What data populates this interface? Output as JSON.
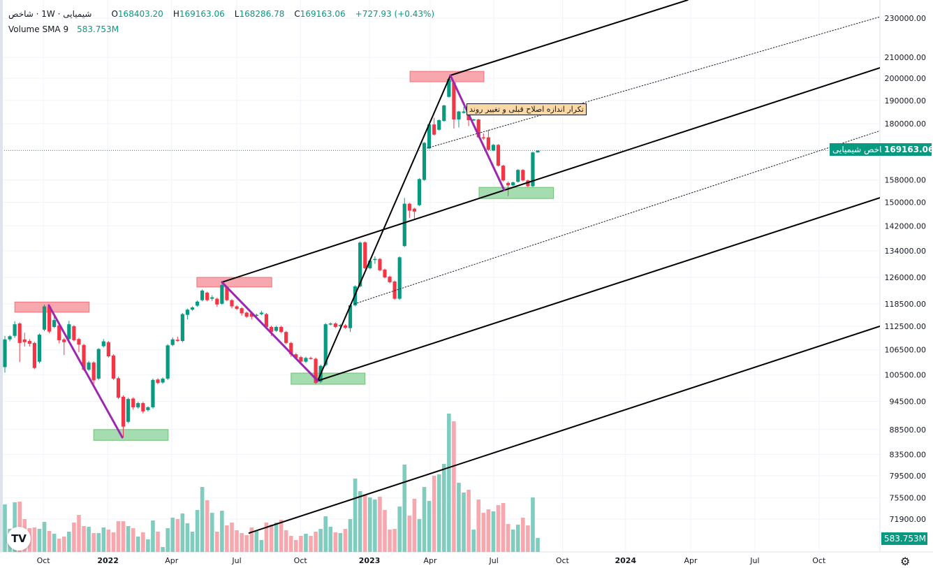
{
  "header": {
    "symbol": "شیمیایی · 1W · شاخص",
    "ohlc": {
      "o_label": "O",
      "o": "168403.20",
      "h_label": "H",
      "h": "169163.06",
      "l_label": "L",
      "l": "168286.78",
      "c_label": "C",
      "c": "169163.06",
      "change": "+727.93 (+0.43%)"
    },
    "volume_label": "Volume SMA 9",
    "volume_value": "583.753M"
  },
  "price_tag": {
    "name": "شاخص شیمیایی",
    "value": "169163.06"
  },
  "volume_tag": "583.753M",
  "callout_text": "تکرار اندازه اصلاح قبلی و تغییر روند",
  "logo_text": "TV",
  "icons": {
    "settings": "gear-icon",
    "logo": "tradingview-logo-icon"
  },
  "colors": {
    "up": "#089981",
    "down": "#F23645",
    "up_volume": "#80cdbf",
    "down_volume": "#f7a8ae",
    "pattern": "#9c27b0",
    "supply": "#f7a8ae",
    "demand": "#a5dcb0"
  },
  "chart_data": {
    "type": "candlestick",
    "interval": "1W",
    "y_scale": "log",
    "ylim": [
      69000,
      240000
    ],
    "y_ticks": [
      230000,
      210000,
      200000,
      190000,
      180000,
      158000,
      150000,
      142000,
      134000,
      126000,
      118500,
      112500,
      106500,
      100500,
      94500,
      88500,
      83500,
      79500,
      75500,
      71900
    ],
    "y_tick_labels": [
      "230000.00",
      "210000.00",
      "200000.00",
      "190000.00",
      "180000.00",
      "158000.00",
      "150000.00",
      "142000.00",
      "134000.00",
      "126000.00",
      "118500.00",
      "112500.00",
      "106500.00",
      "100500.00",
      "94500.00",
      "88500.00",
      "83500.00",
      "79500.00",
      "75500.00",
      "71900.00"
    ],
    "x_ticks": [
      {
        "label": "Oct",
        "week": 7.8
      },
      {
        "label": "2022",
        "week": 20.9
      },
      {
        "label": "Apr",
        "week": 33.8
      },
      {
        "label": "Jul",
        "week": 47.0
      },
      {
        "label": "Oct",
        "week": 59.9
      },
      {
        "label": "2023",
        "week": 73.9
      },
      {
        "label": "Apr",
        "week": 86.2
      },
      {
        "label": "Jul",
        "week": 99.1
      },
      {
        "label": "Oct",
        "week": 113.0
      },
      {
        "label": "2024",
        "week": 125.8
      },
      {
        "label": "Apr",
        "week": 139.0
      },
      {
        "label": "Jul",
        "week": 152.0
      },
      {
        "label": "Oct",
        "week": 165.0
      }
    ],
    "last_price": 169163.06,
    "candles_ohlc_volumeM": [
      [
        102300,
        110000,
        101000,
        109100,
        823
      ],
      [
        109100,
        110200,
        108600,
        109900,
        400
      ],
      [
        110000,
        113800,
        109500,
        113000,
        860
      ],
      [
        113200,
        113500,
        103500,
        108200,
        871
      ],
      [
        109100,
        110800,
        107300,
        108400,
        569
      ],
      [
        108700,
        109200,
        107300,
        108000,
        411
      ],
      [
        108200,
        108500,
        101800,
        102100,
        424
      ],
      [
        103600,
        110600,
        103200,
        110300,
        399
      ],
      [
        111600,
        118300,
        111200,
        117800,
        520
      ],
      [
        117800,
        118100,
        110700,
        111100,
        363
      ],
      [
        112300,
        115100,
        112000,
        114100,
        315
      ],
      [
        112700,
        113000,
        108100,
        108900,
        230
      ],
      [
        109100,
        109500,
        105200,
        108400,
        266
      ],
      [
        109200,
        113900,
        108800,
        113000,
        351
      ],
      [
        112500,
        112800,
        108600,
        108900,
        508
      ],
      [
        109200,
        109500,
        105900,
        107800,
        641
      ],
      [
        107700,
        108000,
        101400,
        101700,
        448
      ],
      [
        101700,
        103800,
        101400,
        103400,
        436
      ],
      [
        103400,
        103700,
        98400,
        99200,
        327
      ],
      [
        99600,
        106900,
        99300,
        106700,
        327
      ],
      [
        107400,
        109200,
        107100,
        108600,
        424
      ],
      [
        108400,
        108700,
        104600,
        104900,
        387
      ],
      [
        105100,
        105400,
        99300,
        99600,
        339
      ],
      [
        99700,
        100000,
        95000,
        95300,
        532
      ],
      [
        95500,
        95800,
        86900,
        89100,
        532
      ],
      [
        90100,
        95300,
        89800,
        95000,
        448
      ],
      [
        95100,
        95400,
        92700,
        93200,
        411
      ],
      [
        93200,
        94400,
        92900,
        94100,
        266
      ],
      [
        94100,
        94400,
        91900,
        92300,
        339
      ],
      [
        92600,
        93400,
        92300,
        93200,
        218
      ],
      [
        93200,
        99600,
        92900,
        99300,
        545
      ],
      [
        99400,
        99700,
        98300,
        98600,
        351
      ],
      [
        98700,
        99900,
        98400,
        99600,
        85
      ],
      [
        99600,
        107900,
        99300,
        107600,
        411
      ],
      [
        107700,
        109600,
        107400,
        109100,
        593
      ],
      [
        109000,
        109800,
        108500,
        108700,
        569
      ],
      [
        108700,
        116000,
        108400,
        115700,
        666
      ],
      [
        115500,
        117200,
        114300,
        116900,
        496
      ],
      [
        116900,
        117800,
        116600,
        117500,
        351
      ],
      [
        118000,
        119400,
        117700,
        119100,
        726
      ],
      [
        119500,
        122500,
        119200,
        122200,
        1125
      ],
      [
        121600,
        121900,
        119200,
        119500,
        895
      ],
      [
        119900,
        120900,
        119300,
        120300,
        678
      ],
      [
        119900,
        120200,
        117700,
        118300,
        351
      ],
      [
        118500,
        124100,
        118200,
        123800,
        714
      ],
      [
        123200,
        123500,
        119200,
        119500,
        460
      ],
      [
        119500,
        119800,
        117300,
        117800,
        508
      ],
      [
        117800,
        118100,
        116800,
        117100,
        375
      ],
      [
        117300,
        117600,
        115300,
        115900,
        327
      ],
      [
        116100,
        116400,
        114700,
        115000,
        290
      ],
      [
        115900,
        116200,
        114300,
        115000,
        424
      ],
      [
        115200,
        115800,
        114900,
        115500,
        363
      ],
      [
        115700,
        116600,
        115400,
        116100,
        206
      ],
      [
        115700,
        116000,
        112000,
        112300,
        508
      ],
      [
        112300,
        112600,
        110000,
        111000,
        472
      ],
      [
        111300,
        112600,
        111000,
        112300,
        508
      ],
      [
        112300,
        112600,
        110700,
        111000,
        557
      ],
      [
        111000,
        111300,
        107900,
        108200,
        375
      ],
      [
        108200,
        108500,
        104800,
        105400,
        278
      ],
      [
        105400,
        105700,
        104200,
        104500,
        206
      ],
      [
        104700,
        105000,
        103300,
        103600,
        278
      ],
      [
        103600,
        104800,
        103300,
        104500,
        315
      ],
      [
        104500,
        104800,
        104100,
        104400,
        278
      ],
      [
        104300,
        104600,
        98300,
        98600,
        351
      ],
      [
        98900,
        102900,
        98600,
        102600,
        399
      ],
      [
        102800,
        113300,
        102500,
        113000,
        617
      ],
      [
        113000,
        113500,
        112700,
        113200,
        436
      ],
      [
        113200,
        113500,
        112000,
        112300,
        339
      ],
      [
        112500,
        113100,
        112200,
        112800,
        327
      ],
      [
        112700,
        113000,
        111800,
        112100,
        399
      ],
      [
        112000,
        118400,
        111000,
        118100,
        569
      ],
      [
        118100,
        123700,
        117800,
        123400,
        1270
      ],
      [
        123400,
        137000,
        123100,
        136600,
        1053
      ],
      [
        136700,
        137000,
        128400,
        128700,
        992
      ],
      [
        128700,
        131300,
        128400,
        131000,
        944
      ],
      [
        131200,
        132300,
        130000,
        131500,
        908
      ],
      [
        131500,
        131800,
        127800,
        128100,
        956
      ],
      [
        128300,
        128600,
        125700,
        126000,
        726
      ],
      [
        126200,
        126500,
        124300,
        124600,
        387
      ],
      [
        124800,
        125100,
        119600,
        119900,
        399
      ],
      [
        119900,
        132300,
        119600,
        132000,
        787
      ],
      [
        135500,
        151500,
        135200,
        149500,
        1513
      ],
      [
        149500,
        149800,
        144600,
        147100,
        629
      ],
      [
        147800,
        148100,
        143900,
        146800,
        920
      ],
      [
        149000,
        158600,
        148700,
        158300,
        569
      ],
      [
        158000,
        172500,
        157700,
        172200,
        1125
      ],
      [
        170000,
        180000,
        169700,
        179700,
        883
      ],
      [
        179700,
        182500,
        175200,
        175500,
        1319
      ],
      [
        177500,
        181800,
        177200,
        181500,
        1343
      ],
      [
        181200,
        188100,
        180900,
        187800,
        1525
      ],
      [
        191600,
        200000,
        191300,
        199700,
        2396
      ],
      [
        198100,
        198400,
        178000,
        181800,
        2263
      ],
      [
        181800,
        185500,
        178500,
        185200,
        1198
      ],
      [
        184600,
        187200,
        184300,
        185200,
        1029
      ],
      [
        185200,
        185500,
        179000,
        181500,
        1077
      ],
      [
        181500,
        182100,
        181200,
        181800,
        387
      ],
      [
        181800,
        182100,
        174100,
        174400,
        908
      ],
      [
        174400,
        176000,
        173400,
        174100,
        678
      ],
      [
        174400,
        177500,
        169100,
        169400,
        738
      ],
      [
        169200,
        171700,
        168900,
        171400,
        702
      ],
      [
        171400,
        171700,
        163000,
        163300,
        811
      ],
      [
        163300,
        163600,
        157500,
        157800,
        847
      ],
      [
        156900,
        157400,
        152200,
        156000,
        484
      ],
      [
        156000,
        157400,
        155700,
        157100,
        387
      ],
      [
        157300,
        162000,
        157000,
        161700,
        472
      ],
      [
        161700,
        162000,
        157500,
        157800,
        593
      ],
      [
        157800,
        158100,
        155400,
        155700,
        460
      ],
      [
        155700,
        168700,
        155400,
        168400,
        944
      ],
      [
        168403.2,
        169163.06,
        168286.78,
        169163.06,
        242
      ]
    ],
    "drawings": {
      "channel_lines": [
        {
          "name": "pitchfork-upper-line",
          "from": [
            90.3,
            201400
          ],
          "to": [
            138.4,
            239900
          ]
        },
        {
          "name": "pitchfork-median-line",
          "from": [
            44.0,
            124600
          ],
          "to": [
            177.4,
            205000
          ]
        },
        {
          "name": "pitchfork-lower-line",
          "from": [
            63.4,
            99100
          ],
          "to": [
            177.4,
            151600
          ]
        },
        {
          "name": "pitchfork-bottom-line",
          "from": [
            49.5,
            69600
          ],
          "to": [
            177.4,
            112500
          ]
        },
        {
          "name": "impulse-leg-line",
          "from": [
            63.4,
            99100
          ],
          "to": [
            90.3,
            201400
          ]
        }
      ],
      "dotted_lines": [
        {
          "name": "upper-dotted-line",
          "from": [
            85.6,
            170100
          ],
          "to": [
            188.1,
            239100
          ]
        },
        {
          "name": "lower-dotted-line",
          "from": [
            70.9,
            118500
          ],
          "to": [
            177.4,
            177100
          ]
        }
      ],
      "correction_legs": [
        {
          "name": "correction-leg-1",
          "from": [
            8.9,
            118100
          ],
          "to": [
            23.8,
            86900
          ]
        },
        {
          "name": "correction-leg-2",
          "from": [
            44.0,
            124600
          ],
          "to": [
            63.4,
            99100
          ]
        },
        {
          "name": "correction-leg-3",
          "from": [
            90.3,
            201400
          ],
          "to": [
            101.2,
            154300
          ]
        }
      ],
      "supply_zones": [
        {
          "weeks": [
            2.0,
            17.1
          ],
          "prices": [
            116200,
            119000
          ]
        },
        {
          "weeks": [
            38.9,
            54.1
          ],
          "prices": [
            123200,
            126000
          ]
        },
        {
          "weeks": [
            82.1,
            97.1
          ],
          "prices": [
            198400,
            203300
          ]
        }
      ],
      "demand_zones": [
        {
          "weeks": [
            18.0,
            33.1
          ],
          "prices": [
            86300,
            88500
          ]
        },
        {
          "weeks": [
            58.0,
            73.0
          ],
          "prices": [
            98300,
            100900
          ]
        },
        {
          "weeks": [
            96.1,
            111.2
          ],
          "prices": [
            151300,
            155300
          ]
        }
      ]
    }
  }
}
